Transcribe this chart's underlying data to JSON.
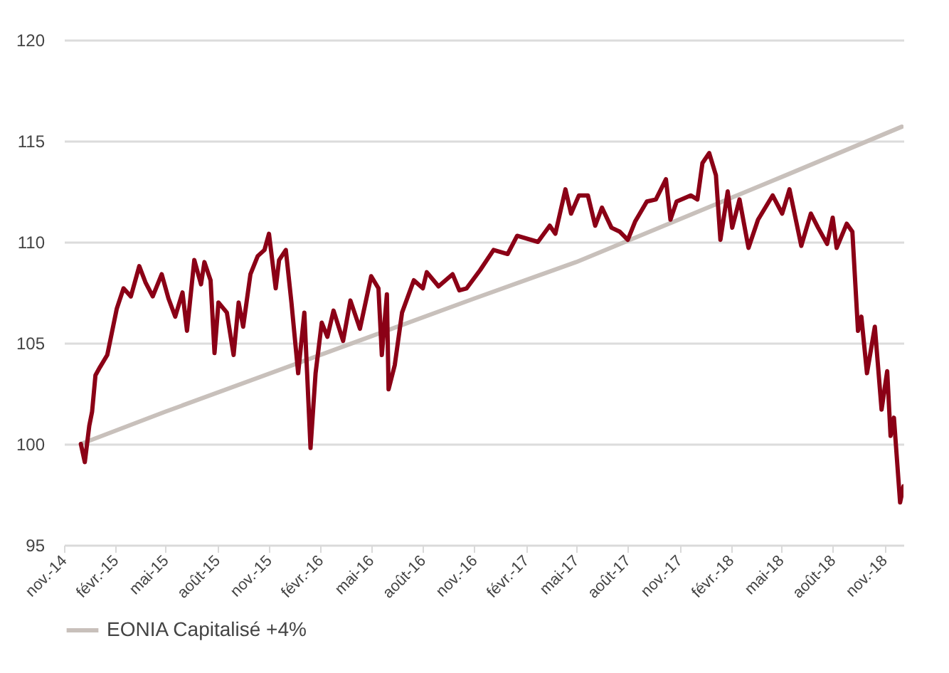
{
  "chart_data": {
    "type": "line",
    "xlim": [
      "2014-11-01",
      "2018-12-05"
    ],
    "ylim": [
      95,
      120
    ],
    "yticks": [
      95,
      100,
      105,
      110,
      115,
      120
    ],
    "xticks": [
      {
        "value": "2014-11-01",
        "label": "nov.-14"
      },
      {
        "value": "2015-02-01",
        "label": "févr.-15"
      },
      {
        "value": "2015-05-01",
        "label": "mai-15"
      },
      {
        "value": "2015-08-01",
        "label": "août-15"
      },
      {
        "value": "2015-11-01",
        "label": "nov.-15"
      },
      {
        "value": "2016-02-01",
        "label": "févr.-16"
      },
      {
        "value": "2016-05-01",
        "label": "mai-16"
      },
      {
        "value": "2016-08-01",
        "label": "août-16"
      },
      {
        "value": "2016-11-01",
        "label": "nov.-16"
      },
      {
        "value": "2017-02-01",
        "label": "févr.-17"
      },
      {
        "value": "2017-05-01",
        "label": "mai-17"
      },
      {
        "value": "2017-08-01",
        "label": "août-17"
      },
      {
        "value": "2017-11-01",
        "label": "nov.-17"
      },
      {
        "value": "2018-02-01",
        "label": "févr.-18"
      },
      {
        "value": "2018-05-01",
        "label": "mai-18"
      },
      {
        "value": "2018-08-01",
        "label": "août-18"
      },
      {
        "value": "2018-11-01",
        "label": "nov.-18"
      }
    ],
    "grid": "y",
    "legend": "bottom",
    "line_style": "solid",
    "marker": "none",
    "series": [
      {
        "color": "#8b0016",
        "x": [
          "2014-12-01",
          "2014-12-08",
          "2014-12-16",
          "2014-12-21",
          "2014-12-27",
          "2015-01-04",
          "2015-01-17",
          "2015-02-03",
          "2015-02-15",
          "2015-02-28",
          "2015-03-15",
          "2015-03-26",
          "2015-04-08",
          "2015-04-24",
          "2015-05-06",
          "2015-05-18",
          "2015-05-31",
          "2015-06-08",
          "2015-06-21",
          "2015-07-03",
          "2015-07-09",
          "2015-07-20",
          "2015-07-27",
          "2015-08-03",
          "2015-08-18",
          "2015-08-30",
          "2015-09-08",
          "2015-09-16",
          "2015-09-29",
          "2015-10-12",
          "2015-10-24",
          "2015-11-01",
          "2015-11-13",
          "2015-11-19",
          "2015-12-01",
          "2015-12-11",
          "2015-12-23",
          "2016-01-03",
          "2016-01-14",
          "2016-01-23",
          "2016-02-03",
          "2016-02-13",
          "2016-02-24",
          "2016-03-12",
          "2016-03-25",
          "2016-04-11",
          "2016-05-01",
          "2016-05-14",
          "2016-05-20",
          "2016-05-29",
          "2016-06-01",
          "2016-06-12",
          "2016-06-25",
          "2016-07-16",
          "2016-08-01",
          "2016-08-08",
          "2016-08-29",
          "2016-09-23",
          "2016-10-05",
          "2016-10-18",
          "2016-11-11",
          "2016-12-05",
          "2016-12-30",
          "2017-01-16",
          "2017-02-22",
          "2017-03-15",
          "2017-03-25",
          "2017-04-12",
          "2017-04-22",
          "2017-05-06",
          "2017-05-22",
          "2017-06-04",
          "2017-06-16",
          "2017-07-03",
          "2017-07-18",
          "2017-08-01",
          "2017-08-14",
          "2017-09-04",
          "2017-09-20",
          "2017-10-08",
          "2017-10-16",
          "2017-10-27",
          "2017-11-21",
          "2017-12-03",
          "2017-12-12",
          "2017-12-24",
          "2018-01-05",
          "2018-01-13",
          "2018-01-26",
          "2018-02-03",
          "2018-02-16",
          "2018-03-04",
          "2018-03-21",
          "2018-04-16",
          "2018-05-03",
          "2018-05-16",
          "2018-06-06",
          "2018-06-23",
          "2018-07-06",
          "2018-07-22",
          "2018-08-01",
          "2018-08-08",
          "2018-08-26",
          "2018-09-05",
          "2018-09-15",
          "2018-09-21",
          "2018-10-01",
          "2018-10-15",
          "2018-10-27",
          "2018-11-06",
          "2018-11-12",
          "2018-11-18",
          "2018-11-29",
          "2018-12-05"
        ],
        "values": [
          100.0,
          99.1,
          100.9,
          101.6,
          103.4,
          103.8,
          104.4,
          106.7,
          107.7,
          107.3,
          108.8,
          108.0,
          107.3,
          108.4,
          107.2,
          106.3,
          107.5,
          105.6,
          109.1,
          107.9,
          109.0,
          108.1,
          104.5,
          107.0,
          106.5,
          104.4,
          107.0,
          105.8,
          108.4,
          109.3,
          109.6,
          110.4,
          107.7,
          109.1,
          109.6,
          107.0,
          103.5,
          106.5,
          99.8,
          103.5,
          106.0,
          105.3,
          106.6,
          105.1,
          107.1,
          105.7,
          108.3,
          107.7,
          104.4,
          107.4,
          102.7,
          103.9,
          106.5,
          108.1,
          107.7,
          108.5,
          107.8,
          108.4,
          107.6,
          107.7,
          108.6,
          109.6,
          109.4,
          110.3,
          110.0,
          110.8,
          110.4,
          112.6,
          111.4,
          112.3,
          112.3,
          110.8,
          111.7,
          110.7,
          110.5,
          110.1,
          111.0,
          112.0,
          112.1,
          113.1,
          111.1,
          112.0,
          112.3,
          112.1,
          113.9,
          114.4,
          113.3,
          110.1,
          112.5,
          110.7,
          112.1,
          109.7,
          111.1,
          112.3,
          111.4,
          112.6,
          109.8,
          111.4,
          110.7,
          109.9,
          111.2,
          109.7,
          110.9,
          110.5,
          105.6,
          106.3,
          103.5,
          105.8,
          101.7,
          103.6,
          100.4,
          101.3,
          97.1,
          97.9
        ]
      },
      {
        "name": "EONIA Capitalisé +4%",
        "color": "#c8c0bb",
        "x": [
          "2014-12-01",
          "2015-05-01",
          "2016-11-01",
          "2017-05-01",
          "2018-05-01",
          "2018-12-02"
        ],
        "values": [
          100.0,
          101.6,
          107.2,
          109.0,
          113.2,
          115.7
        ]
      }
    ]
  }
}
